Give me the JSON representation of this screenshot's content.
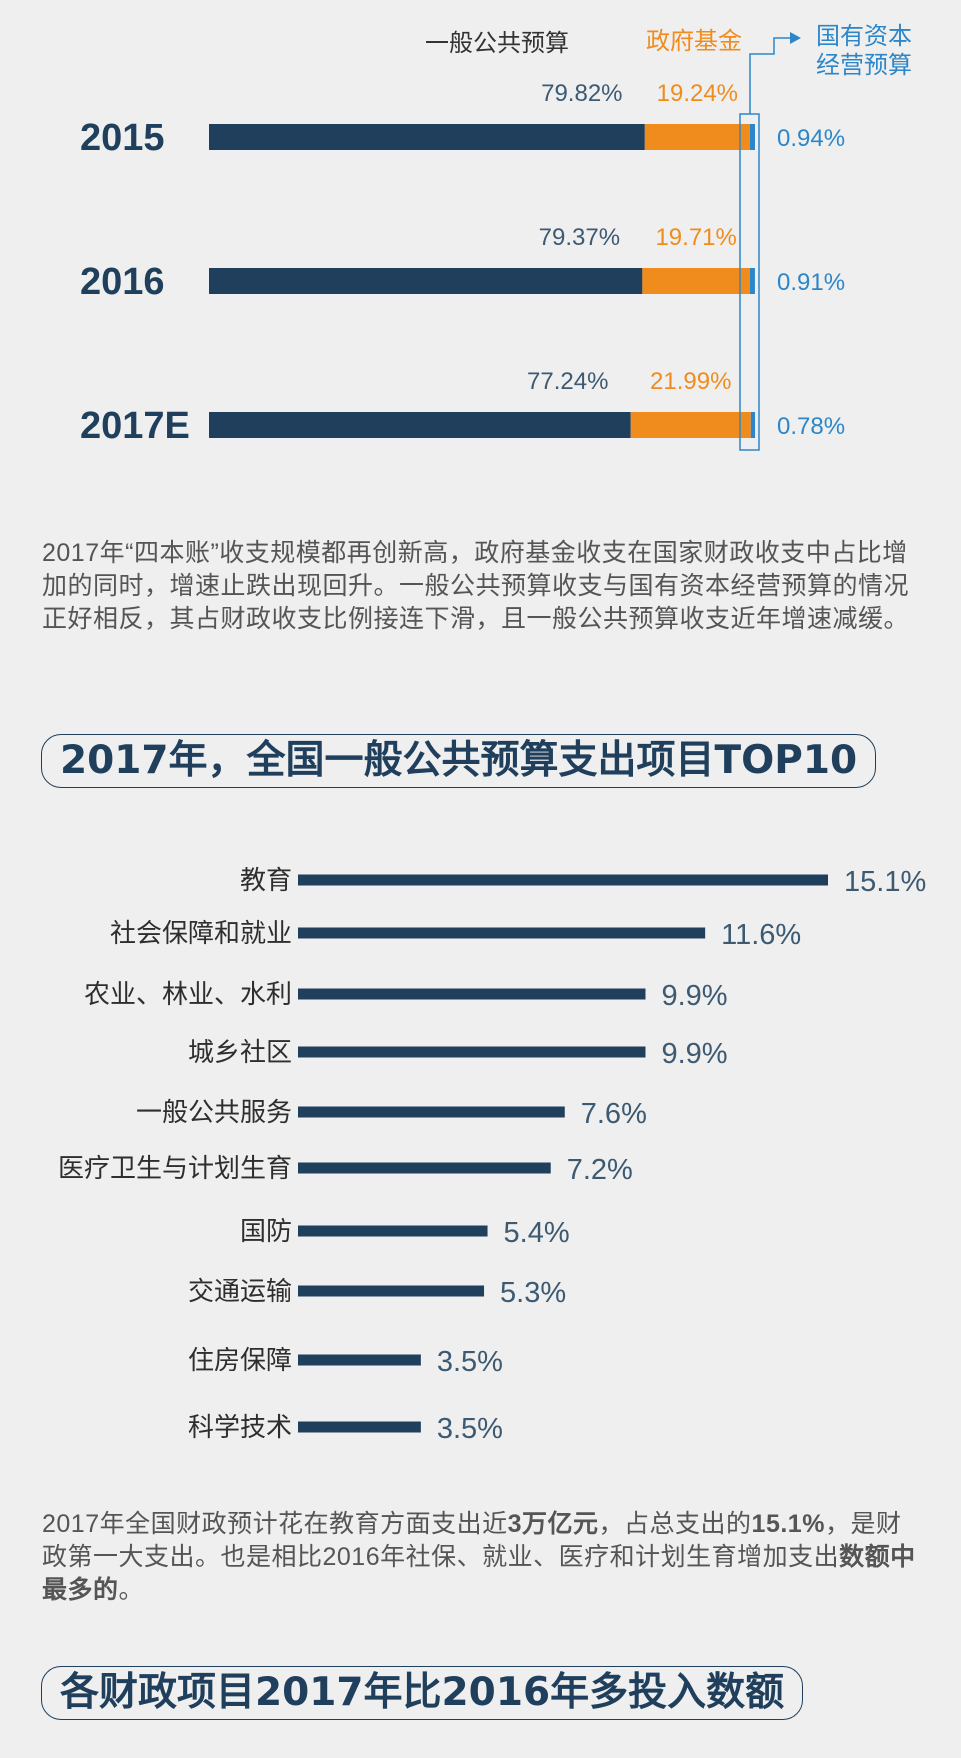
{
  "colors": {
    "general": "#1f3f5c",
    "fund": "#f08c1e",
    "state": "#2d86c8",
    "text": "#555555",
    "label": "#2e2e2e"
  },
  "chart_data": [
    {
      "type": "bar",
      "stacked": true,
      "orientation": "horizontal",
      "categories": [
        "2015",
        "2016",
        "2017E"
      ],
      "series": [
        {
          "name": "一般公共预算",
          "values": [
            79.82,
            79.37,
            77.24
          ],
          "labels": [
            "79.82%",
            "79.37%",
            "77.24%"
          ]
        },
        {
          "name": "政府基金",
          "values": [
            19.24,
            19.71,
            21.99
          ],
          "labels": [
            "19.24%",
            "19.71%",
            "21.99%"
          ]
        },
        {
          "name": "国有资本经营预算",
          "name_lines": [
            "国有资本",
            "经营预算"
          ],
          "values": [
            0.94,
            0.91,
            0.78
          ],
          "labels": [
            "0.94%",
            "0.91%",
            "0.78%"
          ]
        }
      ],
      "unit": "%",
      "legend": "top"
    },
    {
      "type": "bar",
      "orientation": "horizontal",
      "categories": [
        "教育",
        "社会保障和就业",
        "农业、林业、水利",
        "城乡社区",
        "一般公共服务",
        "医疗卫生与计划生育",
        "国防",
        "交通运输",
        "住房保障",
        "科学技术"
      ],
      "values": [
        15.1,
        11.6,
        9.9,
        9.9,
        7.6,
        7.2,
        5.4,
        5.3,
        3.5,
        3.5
      ],
      "value_labels": [
        "15.1%",
        "11.6%",
        "9.9%",
        "9.9%",
        "7.6%",
        "7.2%",
        "5.4%",
        "5.3%",
        "3.5%",
        "3.5%"
      ],
      "unit": "%"
    }
  ],
  "paragraph1": "2017年“四本账”收支规模都再创新高，政府基金收支在国家财政收支中占比增加的同时，增速止跌出现回升。一般公共预算收支与国有资本经营预算的情况正好相反，其占财政收支比例接连下滑，且一般公共预算收支近年增速减缓。",
  "title1": "2017年，全国一般公共预算支出项目TOP10",
  "paragraph2": {
    "p1": "2017年全国财政预计花在教育方面支出近",
    "b1": "3万亿元",
    "p2": "，占总支出的",
    "b2": "15.1%",
    "p3": "，是财政第一大支出。也是相比2016年社保、就业、医疗和计划生育增加支出",
    "b3": "数额中最多的",
    "p4": "。"
  },
  "title2": "各财政项目2017年比2016年多投入数额"
}
